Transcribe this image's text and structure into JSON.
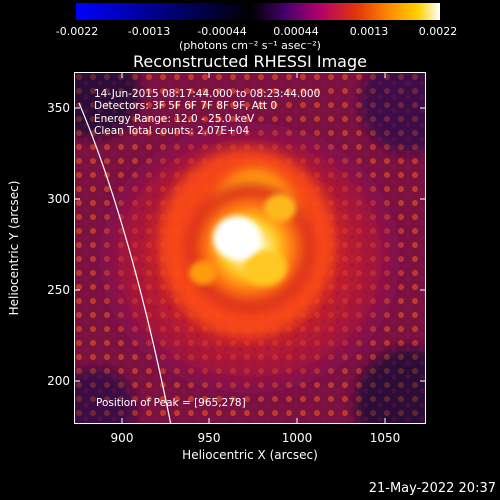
{
  "colorbar": {
    "tick_labels": [
      "-0.0022",
      "-0.0013",
      "-0.00044",
      "0.00044",
      "0.0013",
      "0.0022"
    ],
    "unit_label": "(photons cm⁻² s⁻¹ asec⁻²)"
  },
  "title": "Reconstructed RHESSI Image",
  "info": {
    "time_range": "14-Jun-2015 08:17:44.000 to 08:23:44.000",
    "detectors": "Detectors: 3F 5F 6F 7F 8F 9F, Att 0",
    "energy_range": "Energy Range: 12.0 - 25.0 keV",
    "clean_counts": "Clean     Total counts: 2.07E+04"
  },
  "peak_position": "Position of Peak = [965,278]",
  "axes": {
    "x_label": "Heliocentric X (arcsec)",
    "y_label": "Heliocentric Y (arcsec)",
    "x_ticks": [
      "900",
      "950",
      "1000",
      "1050"
    ],
    "y_ticks": [
      "350",
      "300",
      "250",
      "200"
    ]
  },
  "timestamp": "21-May-2022 20:37"
}
